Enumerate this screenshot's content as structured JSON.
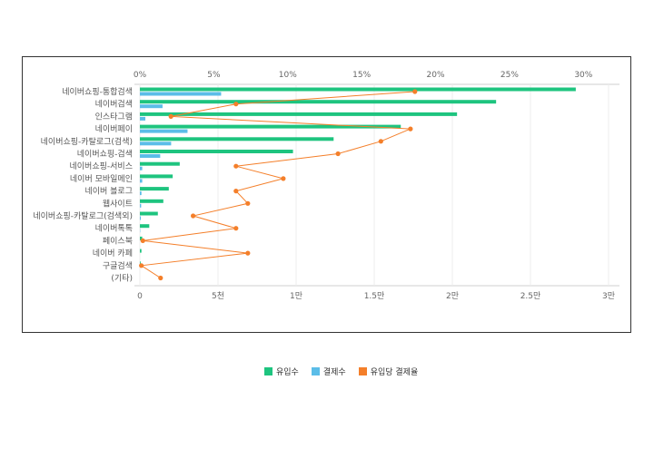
{
  "chart_data": {
    "type": "bar",
    "orientation": "horizontal",
    "categories": [
      "네이버쇼핑-통합검색",
      "네이버검색",
      "인스타그램",
      "네이버페이",
      "네이버쇼핑-카탈로그(검색)",
      "네이버쇼핑-검색",
      "네이버쇼핑-서비스",
      "네이버 모바일메인",
      "네이버 블로그",
      "웹사이트",
      "네이버쇼핑-카탈로그(검색외)",
      "네이버톡톡",
      "페이스북",
      "네이버 카페",
      "구글검색",
      "(기타)"
    ],
    "series": [
      {
        "name": "유입수",
        "axis": "bottom",
        "type": "bar",
        "color": "#1ec47f",
        "values": [
          27900,
          22800,
          20300,
          16700,
          12400,
          9800,
          2550,
          2100,
          1850,
          1500,
          1150,
          600,
          150,
          100,
          50,
          0
        ]
      },
      {
        "name": "결제수",
        "axis": "bottom",
        "type": "bar",
        "color": "#5bbde8",
        "values": [
          5200,
          1450,
          350,
          3050,
          2000,
          1300,
          150,
          150,
          100,
          80,
          60,
          20,
          0,
          0,
          0,
          0
        ]
      },
      {
        "name": "유입당 결제율",
        "axis": "top",
        "type": "line",
        "color": "#f47f2a",
        "values": [
          18.6,
          6.5,
          2.1,
          18.3,
          16.3,
          13.4,
          6.5,
          9.7,
          6.5,
          7.3,
          3.6,
          6.5,
          0.2,
          7.3,
          0.1,
          1.4
        ]
      }
    ],
    "x_bottom": {
      "ticks": [
        "0",
        "5천",
        "1만",
        "1.5만",
        "2만",
        "2.5만",
        "3만"
      ],
      "range": [
        0,
        30000
      ]
    },
    "x_top": {
      "ticks": [
        "0%",
        "5%",
        "10%",
        "15%",
        "20%",
        "25%",
        "30%"
      ],
      "range": [
        0,
        31.7
      ]
    },
    "grid": true,
    "legend_position": "bottom"
  }
}
